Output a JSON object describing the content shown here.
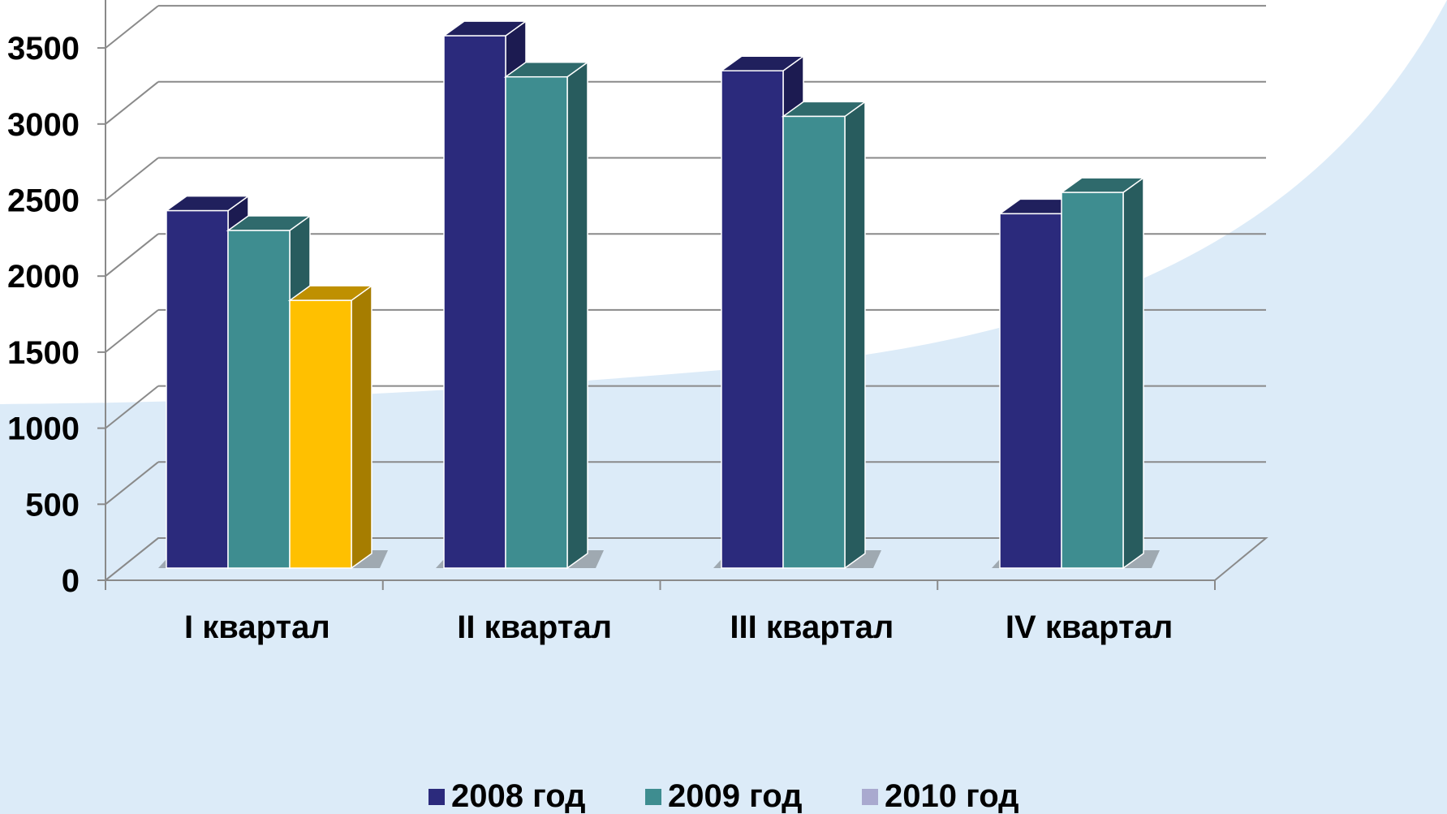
{
  "chart_data": {
    "type": "bar",
    "categories": [
      "I квартал",
      "II квартал",
      "III квартал",
      "IV квартал"
    ],
    "series": [
      {
        "name": "2008 год",
        "values": [
          2350,
          3500,
          3270,
          2330
        ],
        "color": "#2b2a7c"
      },
      {
        "name": "2009 год",
        "values": [
          2220,
          3230,
          2970,
          2470
        ],
        "color": "#3e8d90"
      },
      {
        "name": "2010 год",
        "values": [
          1760,
          null,
          null,
          null
        ],
        "color": "#ffc000",
        "legend_color": "#a9a9cf"
      }
    ],
    "ylim": [
      0,
      3500
    ],
    "yticks": [
      "0",
      "500",
      "1000",
      "1500",
      "2000",
      "2500",
      "3000",
      "3500"
    ],
    "grid": true,
    "legend_position": "bottom",
    "colors": {
      "background_light": "#dcebf8",
      "gridline": "#8a8a8a"
    }
  }
}
